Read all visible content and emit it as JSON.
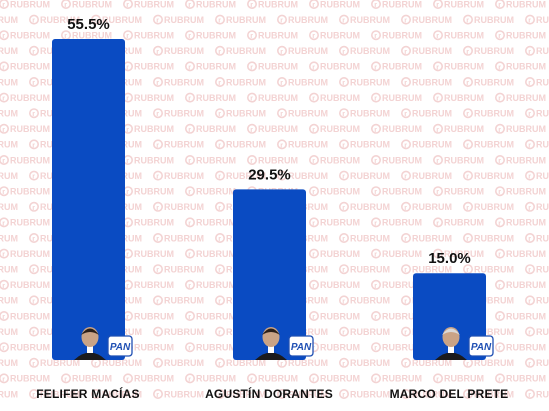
{
  "watermark": {
    "text": "RUBRUM",
    "color": "#f3d3d3"
  },
  "chart_data": {
    "type": "bar",
    "categories": [
      "FELIFER MACÍAS",
      "AGUSTÍN DORANTES",
      "MARCO DEL PRETE"
    ],
    "values": [
      55.5,
      29.5,
      15.0
    ],
    "value_labels": [
      "55.5%",
      "29.5%",
      "15.0%"
    ],
    "bar_color": "#0a4bc2",
    "party_badges": [
      "PAN",
      "PAN",
      "PAN"
    ],
    "ylim": [
      0,
      60
    ],
    "grid": false,
    "legend": "none"
  }
}
